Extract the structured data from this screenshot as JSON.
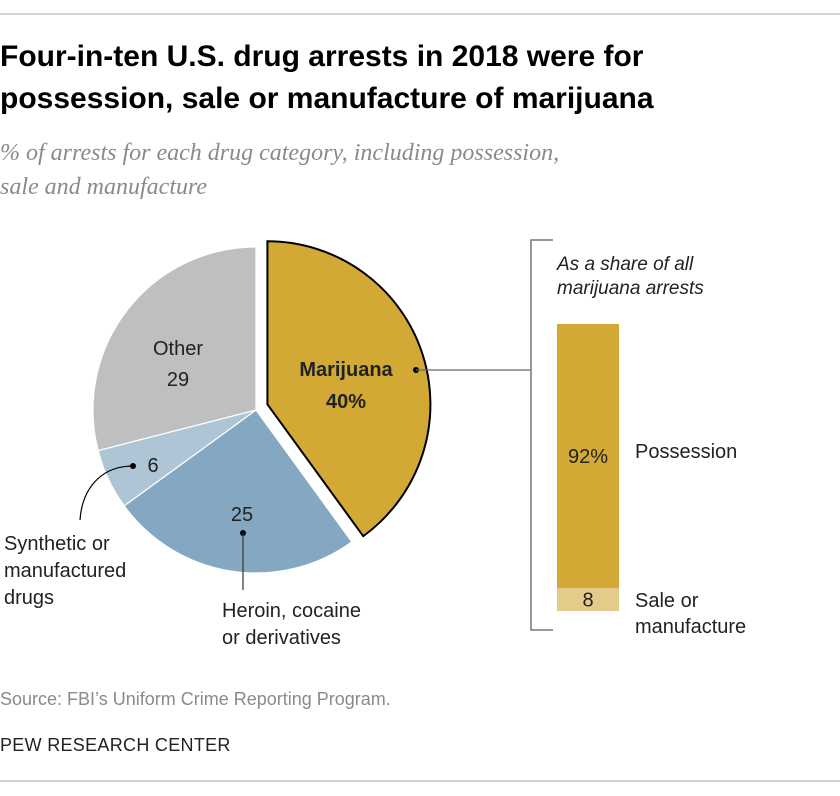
{
  "title": [
    "Four-in-ten U.S. drug arrests in 2018 were for",
    "possession, sale or manufacture of marijuana"
  ],
  "subtitle": [
    "% of arrests for each drug category, including possession,",
    "sale and manufacture"
  ],
  "source": "Source: FBI’s Uniform Crime Reporting Program.",
  "brand": "PEW RESEARCH CENTER",
  "chart_data": [
    {
      "type": "pie",
      "unit": "%",
      "slices": [
        {
          "label": "Marijuana",
          "value": 40,
          "value_label": "40%",
          "color": "#D1A934",
          "exploded": true
        },
        {
          "label_lines": [
            "Heroin, cocaine",
            "or derivatives"
          ],
          "value": 25,
          "value_label": "25",
          "color": "#84A8C1",
          "label_color": "#5F87A6"
        },
        {
          "label_lines": [
            "Synthetic or",
            "manufactured",
            "drugs"
          ],
          "value": 6,
          "value_label": "6",
          "color": "#AEC5D5",
          "label_color": "#8FB1CA"
        },
        {
          "label": "Other",
          "value": 29,
          "value_label": "29",
          "color": "#BEBFC1"
        }
      ]
    },
    {
      "type": "bar",
      "stacked": true,
      "note": [
        "As a share of all",
        "marijuana arrests"
      ],
      "segments": [
        {
          "label": "Possession",
          "value": 92,
          "value_label": "92%",
          "color": "#D1A934"
        },
        {
          "label_lines": [
            "Sale or",
            "manufacture"
          ],
          "value": 8,
          "value_label": "8",
          "color": "#E5CB88"
        }
      ]
    }
  ]
}
